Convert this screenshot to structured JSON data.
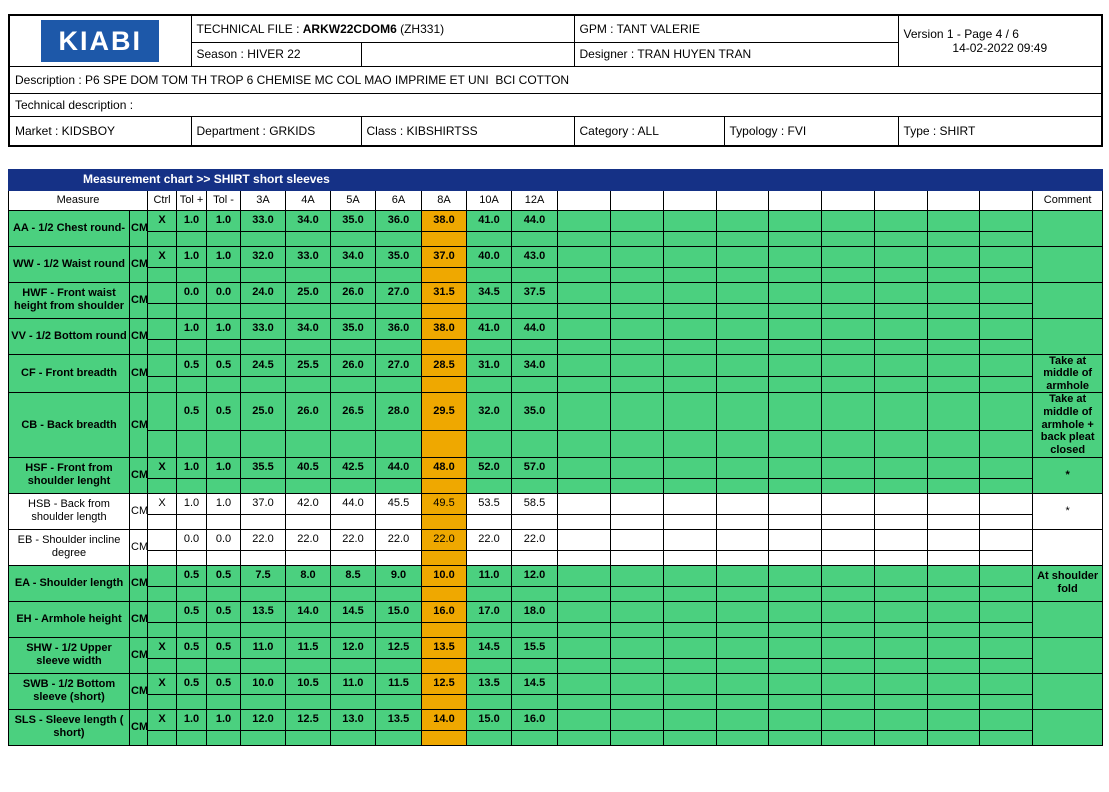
{
  "header": {
    "logo_text": "KIABI",
    "technical_file_label": "TECHNICAL FILE : ",
    "technical_file_code": "ARKW22CDOM6",
    "technical_file_suffix": " (ZH331)",
    "gpm": "GPM : TANT VALERIE",
    "version_line1": "Version 1 - Page 4 / 6",
    "version_line2": "14-02-2022 09:49",
    "season": "Season : HIVER 22",
    "designer": "Designer : TRAN HUYEN TRAN",
    "description": "Description : P6 SPE DOM TOM TH TROP 6 CHEMISE MC COL MAO IMPRIME ET UNI  BCI COTTON",
    "technical_description": "Technical description :",
    "market": "Market : KIDSBOY",
    "department": "Department : GRKIDS",
    "class": "Class : KIBSHIRTSS",
    "category": "Category : ALL",
    "typology": "Typology : FVI",
    "type": "Type : SHIRT"
  },
  "chart": {
    "title": "Measurement chart >> SHIRT short sleeves",
    "columns": {
      "measure": "Measure",
      "ctrl": "Ctrl",
      "tol_plus": "Tol +",
      "tol_minus": "Tol -",
      "sizes": [
        "3A",
        "4A",
        "5A",
        "6A",
        "8A",
        "10A",
        "12A"
      ],
      "highlight_size": "8A",
      "blank_count": 9,
      "comment": "Comment"
    },
    "rows": [
      {
        "name": "AA - 1/2 Chest round-",
        "unit": "CM",
        "ctrl": "X",
        "tol_plus": "1.0",
        "tol_minus": "1.0",
        "values": [
          "33.0",
          "34.0",
          "35.0",
          "36.0",
          "38.0",
          "41.0",
          "44.0"
        ],
        "comment": "",
        "shaded": true
      },
      {
        "name": "WW - 1/2 Waist round",
        "unit": "CM",
        "ctrl": "X",
        "tol_plus": "1.0",
        "tol_minus": "1.0",
        "values": [
          "32.0",
          "33.0",
          "34.0",
          "35.0",
          "37.0",
          "40.0",
          "43.0"
        ],
        "comment": "",
        "shaded": true
      },
      {
        "name": "HWF - Front waist height from shoulder",
        "unit": "CM",
        "ctrl": "",
        "tol_plus": "0.0",
        "tol_minus": "0.0",
        "values": [
          "24.0",
          "25.0",
          "26.0",
          "27.0",
          "31.5",
          "34.5",
          "37.5"
        ],
        "comment": "",
        "shaded": true
      },
      {
        "name": "VV - 1/2 Bottom round",
        "unit": "CM",
        "ctrl": "",
        "tol_plus": "1.0",
        "tol_minus": "1.0",
        "values": [
          "33.0",
          "34.0",
          "35.0",
          "36.0",
          "38.0",
          "41.0",
          "44.0"
        ],
        "comment": "",
        "shaded": true
      },
      {
        "name": "CF - Front breadth",
        "unit": "CM",
        "ctrl": "",
        "tol_plus": "0.5",
        "tol_minus": "0.5",
        "values": [
          "24.5",
          "25.5",
          "26.0",
          "27.0",
          "28.5",
          "31.0",
          "34.0"
        ],
        "comment": "Take at middle of armhole",
        "shaded": true
      },
      {
        "name": "CB - Back breadth",
        "unit": "CM",
        "ctrl": "",
        "tol_plus": "0.5",
        "tol_minus": "0.5",
        "values": [
          "25.0",
          "26.0",
          "26.5",
          "28.0",
          "29.5",
          "32.0",
          "35.0"
        ],
        "comment": "Take at middle of armhole + back pleat closed",
        "shaded": true
      },
      {
        "name": "HSF - Front from shoulder lenght",
        "unit": "CM",
        "ctrl": "X",
        "tol_plus": "1.0",
        "tol_minus": "1.0",
        "values": [
          "35.5",
          "40.5",
          "42.5",
          "44.0",
          "48.0",
          "52.0",
          "57.0"
        ],
        "comment": "*",
        "shaded": true
      },
      {
        "name": "HSB - Back from shoulder length",
        "unit": "CM",
        "ctrl": "X",
        "tol_plus": "1.0",
        "tol_minus": "1.0",
        "values": [
          "37.0",
          "42.0",
          "44.0",
          "45.5",
          "49.5",
          "53.5",
          "58.5"
        ],
        "comment": "*",
        "shaded": false
      },
      {
        "name": "EB - Shoulder incline degree",
        "unit": "CM",
        "ctrl": "",
        "tol_plus": "0.0",
        "tol_minus": "0.0",
        "values": [
          "22.0",
          "22.0",
          "22.0",
          "22.0",
          "22.0",
          "22.0",
          "22.0"
        ],
        "comment": "",
        "shaded": false
      },
      {
        "name": "EA - Shoulder length",
        "unit": "CM",
        "ctrl": "",
        "tol_plus": "0.5",
        "tol_minus": "0.5",
        "values": [
          "7.5",
          "8.0",
          "8.5",
          "9.0",
          "10.0",
          "11.0",
          "12.0"
        ],
        "comment": "At shoulder fold",
        "shaded": true
      },
      {
        "name": "EH - Armhole height",
        "unit": "CM",
        "ctrl": "",
        "tol_plus": "0.5",
        "tol_minus": "0.5",
        "values": [
          "13.5",
          "14.0",
          "14.5",
          "15.0",
          "16.0",
          "17.0",
          "18.0"
        ],
        "comment": "",
        "shaded": true
      },
      {
        "name": "SHW - 1/2 Upper sleeve width",
        "unit": "CM",
        "ctrl": "X",
        "tol_plus": "0.5",
        "tol_minus": "0.5",
        "values": [
          "11.0",
          "11.5",
          "12.0",
          "12.5",
          "13.5",
          "14.5",
          "15.5"
        ],
        "comment": "",
        "shaded": true
      },
      {
        "name": "SWB - 1/2 Bottom sleeve (short)",
        "unit": "CM",
        "ctrl": "X",
        "tol_plus": "0.5",
        "tol_minus": "0.5",
        "values": [
          "10.0",
          "10.5",
          "11.0",
          "11.5",
          "12.5",
          "13.5",
          "14.5"
        ],
        "comment": "",
        "shaded": true
      },
      {
        "name": "SLS - Sleeve length ( short)",
        "unit": "CM",
        "ctrl": "X",
        "tol_plus": "1.0",
        "tol_minus": "1.0",
        "values": [
          "12.0",
          "12.5",
          "13.0",
          "13.5",
          "14.0",
          "15.0",
          "16.0"
        ],
        "comment": "",
        "shaded": true
      }
    ]
  },
  "colors": {
    "row_green": "#4bd07f",
    "highlight_orange": "#efa800",
    "title_bar_blue": "#153186",
    "logo_blue": "#1d58a9"
  }
}
